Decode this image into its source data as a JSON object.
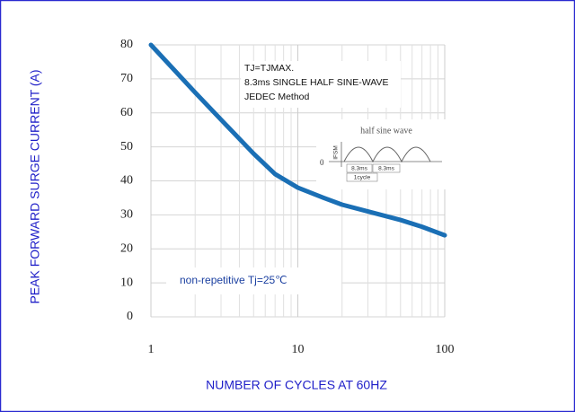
{
  "chart_data": {
    "type": "line",
    "x_label": "NUMBER OF CYCLES AT 60HZ",
    "y_label": "PEAK FORWARD SURGE CURRENT (A)",
    "x": [
      1,
      2,
      3,
      5,
      7,
      10,
      15,
      20,
      30,
      50,
      70,
      100
    ],
    "series": [
      {
        "name": "IFSM",
        "color": "#1a6fb5",
        "values": [
          80,
          66,
          58,
          48,
          42,
          38,
          35,
          33,
          31,
          28.5,
          26.5,
          24
        ]
      }
    ],
    "xlim": [
      1,
      100
    ],
    "xticks": [
      1,
      10,
      100
    ],
    "x_log": true,
    "x_minor_ticks": [
      2,
      3,
      4,
      5,
      6,
      7,
      8,
      9,
      20,
      30,
      40,
      50,
      60,
      70,
      80,
      90
    ],
    "ylim": [
      0,
      80
    ],
    "yticks": [
      0,
      10,
      20,
      30,
      40,
      50,
      60,
      70,
      80
    ],
    "grid": true,
    "annotations": {
      "condition_1": "TJ=TJMAX.",
      "condition_2": "8.3ms SINGLE HALF SINE-WAVE",
      "condition_3": "JEDEC Method",
      "note": "non-repetitive  Tj=25℃",
      "inset_title": "half sine wave",
      "inset_ylabel": "IFSM",
      "inset_zero": "0",
      "inset_period_1": "8.3ms",
      "inset_period_2": "8.3ms",
      "inset_cycle": "1cycle"
    }
  }
}
